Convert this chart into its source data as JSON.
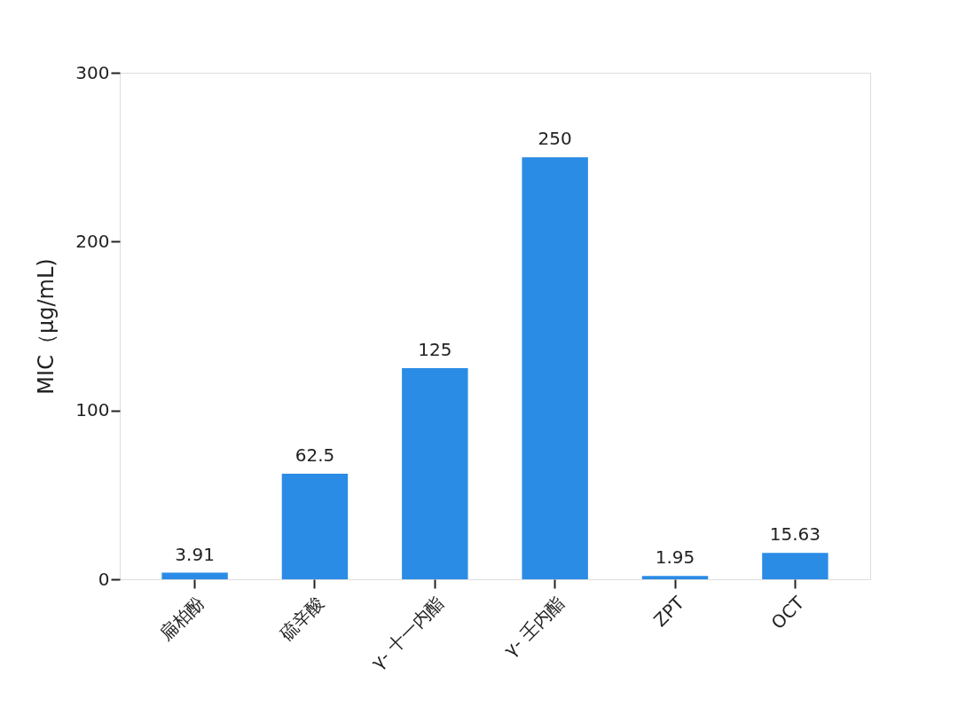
{
  "chart_data": {
    "type": "bar",
    "ylabel": "MIC（μg/mL)",
    "categories": [
      "扁柏酚",
      "硫辛酸",
      "γ- 十一内酯",
      "γ- 壬内酯",
      "ZPT",
      "OCT"
    ],
    "values": [
      3.91,
      62.5,
      125,
      250,
      1.95,
      15.63
    ],
    "color": "#2b8ce6",
    "ylim": [
      0,
      300
    ],
    "yticks": [
      0,
      100,
      200,
      300
    ],
    "grid": false,
    "data_labels": true
  }
}
